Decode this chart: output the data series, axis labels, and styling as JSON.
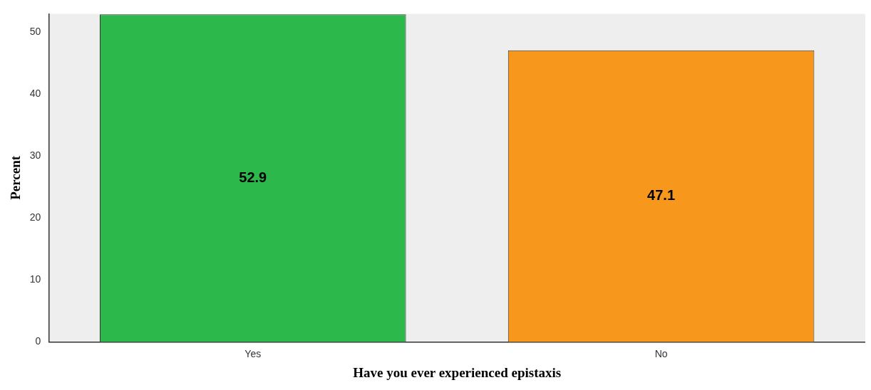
{
  "chart_data": {
    "type": "bar",
    "xlabel": "Have you ever experienced epistaxis",
    "ylabel": "Percent",
    "categories": [
      "Yes",
      "No"
    ],
    "values": [
      52.9,
      47.1
    ],
    "colors": [
      "#2db84b",
      "#f7981d"
    ],
    "ylim": [
      0,
      53
    ],
    "yticks": [
      0,
      10,
      20,
      30,
      40,
      50
    ],
    "data_labels": true,
    "grid": false,
    "legend": false
  }
}
